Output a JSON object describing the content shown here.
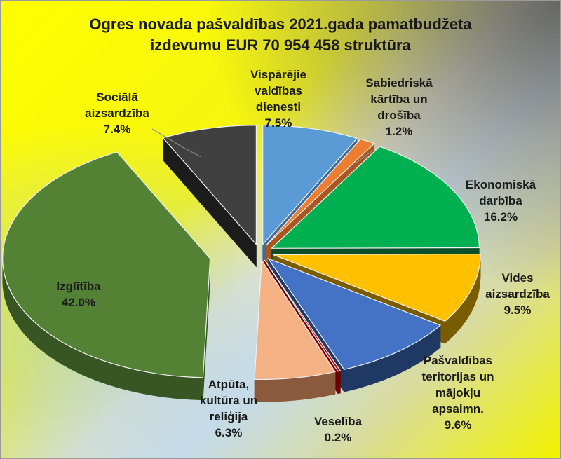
{
  "chart_data": {
    "type": "pie",
    "title_line1": "Ogres novada pašvaldības 2021.gada pamatbudžeta",
    "title_line2": "izdevumu EUR 70 954 458 struktūra",
    "slices": [
      {
        "name_lines": [
          "Vispārējie",
          "valdības",
          "dienesti"
        ],
        "value": 7.5,
        "value_label": "7.5%",
        "color": "#5b9bd5",
        "side_color": "#3f6d99"
      },
      {
        "name_lines": [
          "Sabiedriskā",
          "kārtība un",
          "drošība"
        ],
        "value": 1.2,
        "value_label": "1.2%",
        "color": "#ed7d31",
        "side_color": "#a9561f"
      },
      {
        "name_lines": [
          "Ekonomiskā",
          "darbība"
        ],
        "value": 16.2,
        "value_label": "16.2%",
        "color": "#00b050",
        "side_color": "#0a4f2a"
      },
      {
        "name_lines": [
          "Vides",
          "aizsardzība"
        ],
        "value": 9.5,
        "value_label": "9.5%",
        "color": "#ffc000",
        "side_color": "#7a5c00"
      },
      {
        "name_lines": [
          "Pašvaldības",
          "teritorijas un",
          "mājokļu",
          "apsaimn."
        ],
        "value": 9.6,
        "value_label": "9.6%",
        "color": "#4472c4",
        "side_color": "#1f3864"
      },
      {
        "name_lines": [
          "Veselība"
        ],
        "value": 0.2,
        "value_label": "0.2%",
        "color": "#c00000",
        "side_color": "#6d0000"
      },
      {
        "name_lines": [
          "Atpūta,",
          "kultūra un",
          "reliģija"
        ],
        "value": 6.3,
        "value_label": "6.3%",
        "color": "#f4b183",
        "side_color": "#8b5a3c"
      },
      {
        "name_lines": [
          "Izglītība"
        ],
        "value": 42.0,
        "value_label": "42.0%",
        "color": "#548235",
        "side_color": "#375623"
      },
      {
        "name_lines": [
          "Sociālā",
          "aizsardzība"
        ],
        "value": 7.4,
        "value_label": "7.4%",
        "color": "#404040",
        "side_color": "#1c1c1c"
      }
    ]
  }
}
